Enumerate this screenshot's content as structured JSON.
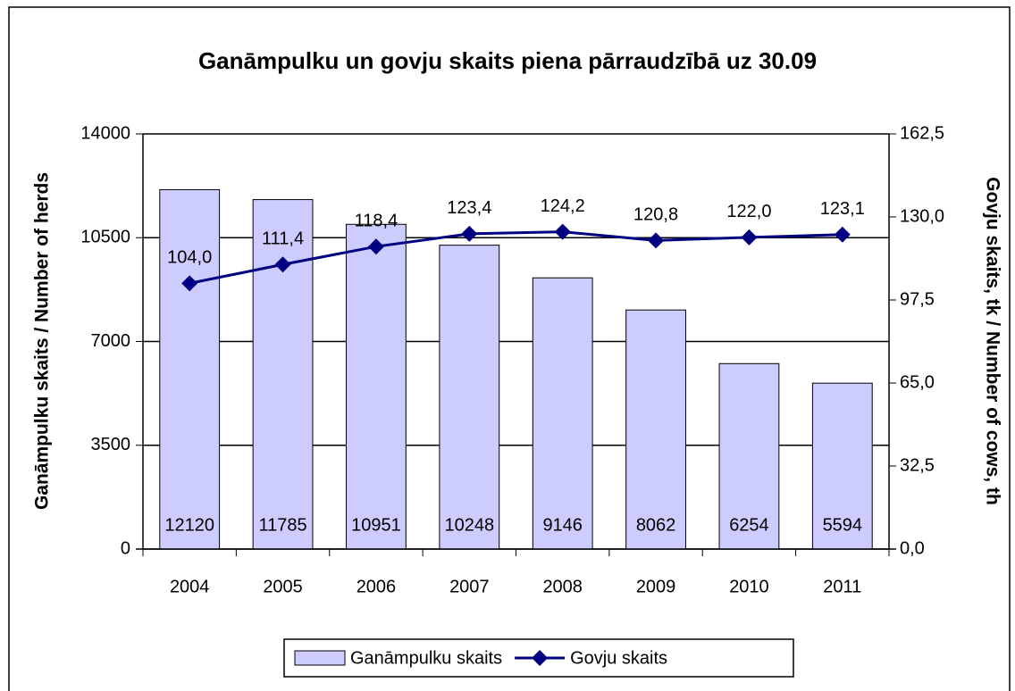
{
  "chart_data": {
    "type": "bar_line",
    "title": "Ganāmpulku un govju skaits piena pārraudzībā uz 30.09",
    "y_label": "Ganāmpulku skaits / Number of herds",
    "y2_label": "Govju skaits, tk / Number of cows, th",
    "categories": [
      "2004",
      "2005",
      "2006",
      "2007",
      "2008",
      "2009",
      "2010",
      "2011"
    ],
    "series": [
      {
        "name": "Ganāmpulku skaits",
        "type": "bar",
        "color": "#ccccff",
        "values": [
          12120,
          11785,
          10951,
          10248,
          9146,
          8062,
          6254,
          5594
        ]
      },
      {
        "name": "Govju skaits",
        "type": "line",
        "axis": "y2",
        "color": "#000080",
        "values": [
          104.0,
          111.4,
          118.4,
          123.4,
          124.2,
          120.8,
          122.0,
          123.1
        ],
        "value_labels": [
          "104,0",
          "111,4",
          "118,4",
          "123,4",
          "124,2",
          "120,8",
          "122,0",
          "123,1"
        ]
      }
    ],
    "ylim": [
      0,
      14000
    ],
    "yticks": [
      0,
      3500,
      7000,
      10500,
      14000
    ],
    "y2lim": [
      0,
      162.5
    ],
    "y2ticks": [
      {
        "value": 0,
        "label": "0,0"
      },
      {
        "value": 32.5,
        "label": "32,5"
      },
      {
        "value": 65,
        "label": "65,0"
      },
      {
        "value": 97.5,
        "label": "97,5"
      },
      {
        "value": 130,
        "label": "130,0"
      },
      {
        "value": 162.5,
        "label": "162,5"
      }
    ],
    "grid": true,
    "legend": "bottom"
  }
}
